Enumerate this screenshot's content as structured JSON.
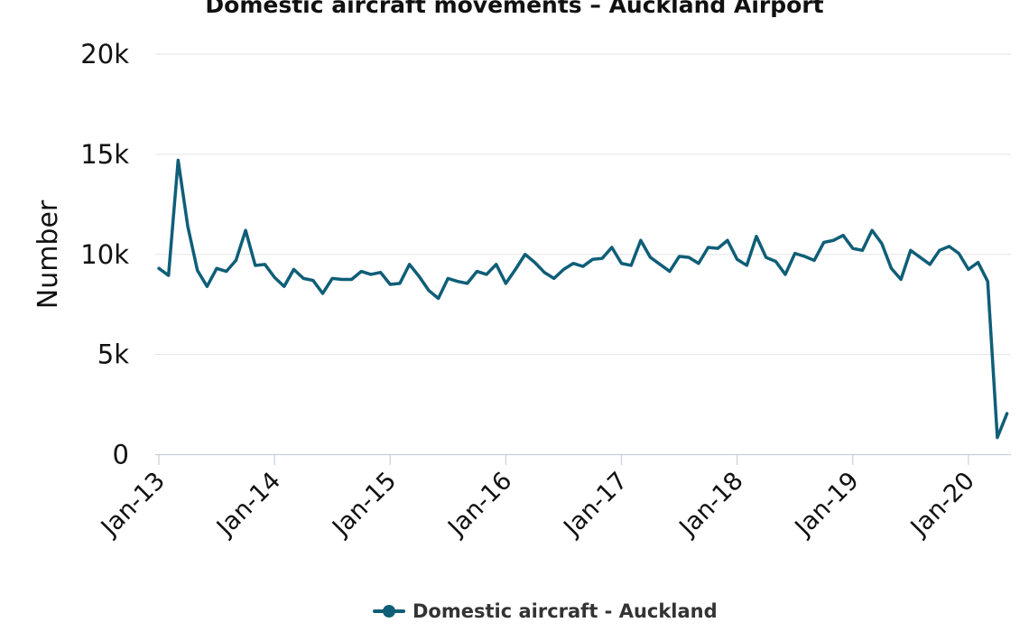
{
  "chart_data": {
    "type": "line",
    "title": "Domestic aircraft movements – Auckland Airport",
    "ylabel": "Number",
    "ylim": [
      0,
      20000
    ],
    "yticks": [
      0,
      5000,
      10000,
      15000,
      20000
    ],
    "ytick_labels": [
      "0",
      "5k",
      "10k",
      "15k",
      "20k"
    ],
    "xlim": [
      "2013-01",
      "2020-05"
    ],
    "xtick_labels": [
      "Jan-13",
      "Jan-14",
      "Jan-15",
      "Jan-16",
      "Jan-17",
      "Jan-18",
      "Jan-19",
      "Jan-20"
    ],
    "xtick_values": [
      "2013-01",
      "2014-01",
      "2015-01",
      "2016-01",
      "2017-01",
      "2018-01",
      "2019-01",
      "2020-01"
    ],
    "grid": true,
    "legend_position": "bottom",
    "series": [
      {
        "name": "Domestic aircraft - Auckland",
        "color": "#0f5e78",
        "x": [
          "2013-01",
          "2013-02",
          "2013-03",
          "2013-04",
          "2013-05",
          "2013-06",
          "2013-07",
          "2013-08",
          "2013-09",
          "2013-10",
          "2013-11",
          "2013-12",
          "2014-01",
          "2014-02",
          "2014-03",
          "2014-04",
          "2014-05",
          "2014-06",
          "2014-07",
          "2014-08",
          "2014-09",
          "2014-10",
          "2014-11",
          "2014-12",
          "2015-01",
          "2015-02",
          "2015-03",
          "2015-04",
          "2015-05",
          "2015-06",
          "2015-07",
          "2015-08",
          "2015-09",
          "2015-10",
          "2015-11",
          "2015-12",
          "2016-01",
          "2016-02",
          "2016-03",
          "2016-04",
          "2016-05",
          "2016-06",
          "2016-07",
          "2016-08",
          "2016-09",
          "2016-10",
          "2016-11",
          "2016-12",
          "2017-01",
          "2017-02",
          "2017-03",
          "2017-04",
          "2017-05",
          "2017-06",
          "2017-07",
          "2017-08",
          "2017-09",
          "2017-10",
          "2017-11",
          "2017-12",
          "2018-01",
          "2018-02",
          "2018-03",
          "2018-04",
          "2018-05",
          "2018-06",
          "2018-07",
          "2018-08",
          "2018-09",
          "2018-10",
          "2018-11",
          "2018-12",
          "2019-01",
          "2019-02",
          "2019-03",
          "2019-04",
          "2019-05",
          "2019-06",
          "2019-07",
          "2019-08",
          "2019-09",
          "2019-10",
          "2019-11",
          "2019-12",
          "2020-01",
          "2020-02",
          "2020-03",
          "2020-04",
          "2020-05"
        ],
        "values": [
          9300,
          8950,
          14700,
          11400,
          9200,
          8400,
          9300,
          9150,
          9700,
          11200,
          9450,
          9500,
          8850,
          8400,
          9250,
          8800,
          8700,
          8050,
          8800,
          8750,
          8750,
          9150,
          9000,
          9100,
          8500,
          8550,
          9500,
          8900,
          8200,
          7800,
          8800,
          8650,
          8550,
          9150,
          9000,
          9500,
          8550,
          9250,
          10000,
          9600,
          9100,
          8800,
          9250,
          9550,
          9400,
          9750,
          9800,
          10350,
          9550,
          9450,
          10700,
          9850,
          9500,
          9150,
          9900,
          9850,
          9550,
          10350,
          10300,
          10700,
          9750,
          9450,
          10900,
          9850,
          9650,
          9000,
          10050,
          9900,
          9700,
          10600,
          10700,
          10950,
          10300,
          10200,
          11200,
          10550,
          9300,
          8750,
          10200,
          9850,
          9500,
          10200,
          10400,
          10050,
          9250,
          9600,
          8650,
          850,
          2050
        ]
      }
    ]
  }
}
